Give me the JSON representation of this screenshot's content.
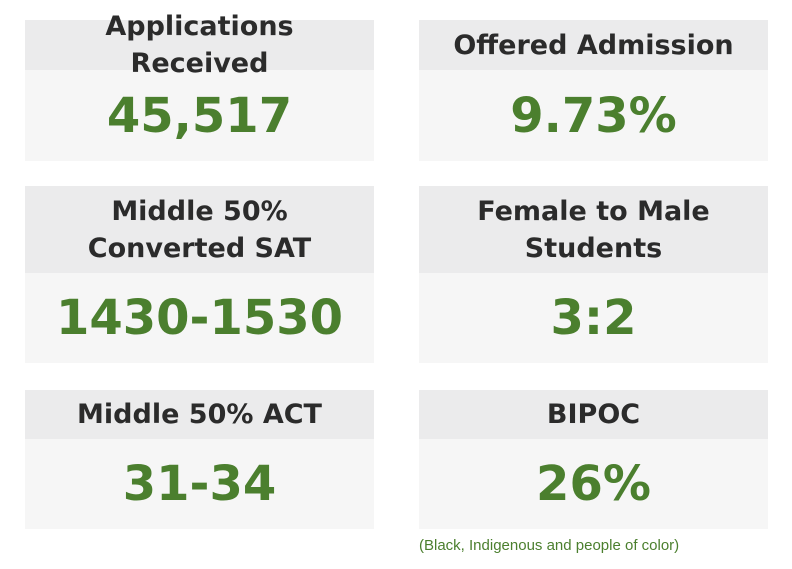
{
  "stats": [
    {
      "label": "Applications Received",
      "value": "45,517"
    },
    {
      "label": "Offered Admission",
      "value": "9.73%"
    },
    {
      "label": "Middle 50% Converted SAT",
      "value": "1430-1530"
    },
    {
      "label": "Female to Male Students",
      "value": "3:2"
    },
    {
      "label": "Middle 50% ACT",
      "value": "31-34"
    },
    {
      "label": "BIPOC",
      "value": "26%"
    }
  ],
  "footnote": "(Black, Indigenous and people of color)",
  "colors": {
    "value_green": "#4b7f2e",
    "header_bg": "#ebebec",
    "body_bg": "#f6f6f6",
    "header_text": "#2b2b2b"
  }
}
